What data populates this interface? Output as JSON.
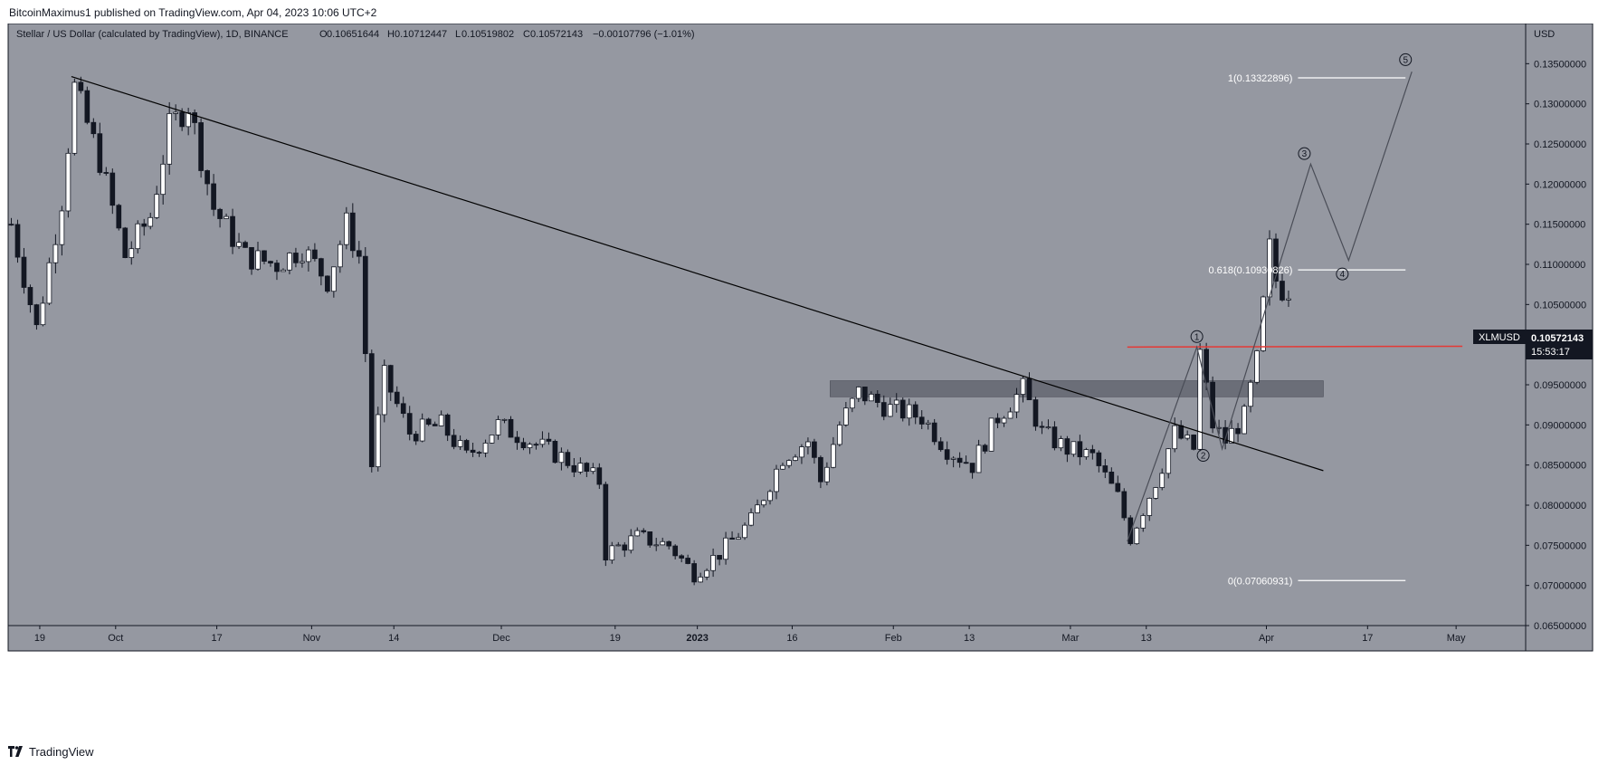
{
  "header": {
    "published_by": "BitcoinMaximus1 published on TradingView.com, Apr 04, 2023 10:06 UTC+2"
  },
  "legend": {
    "symbol": "Stellar / US Dollar (calculated by TradingView), 1D, BINANCE",
    "o_label": "O",
    "o_value": "0.10651644",
    "h_label": "H",
    "h_value": "0.10712447",
    "l_label": "L",
    "l_value": "0.10519802",
    "c_label": "C",
    "c_value": "0.10572143",
    "change": "−0.00107796 (−1.01%)"
  },
  "footer": {
    "brand": "TradingView"
  },
  "colors": {
    "plot_bg": "#9598a1",
    "bull": "#ffffff",
    "bear": "#131722",
    "resistance": "#e53935",
    "trend": "#000000",
    "zone": "#5d606b",
    "fib": "#ffffff",
    "wave": "#4a4d57"
  },
  "chart_data": {
    "type": "candlestick",
    "y_axis": {
      "unit": "USD",
      "ylim": [
        0.065,
        0.14
      ],
      "ticks": [
        "0.13500000",
        "0.13000000",
        "0.12500000",
        "0.12000000",
        "0.11500000",
        "0.11000000",
        "0.10500000",
        "0.10000000",
        "0.09500000",
        "0.09000000",
        "0.08500000",
        "0.08000000",
        "0.07500000",
        "0.07000000",
        "0.06500000"
      ]
    },
    "x_axis": {
      "ticks": [
        {
          "label": "19",
          "date": "2022-09-19"
        },
        {
          "label": "Oct",
          "date": "2022-10-01"
        },
        {
          "label": "17",
          "date": "2022-10-17"
        },
        {
          "label": "Nov",
          "date": "2022-11-01"
        },
        {
          "label": "14",
          "date": "2022-11-14"
        },
        {
          "label": "Dec",
          "date": "2022-12-01"
        },
        {
          "label": "19",
          "date": "2022-12-19"
        },
        {
          "label": "2023",
          "date": "2023-01-01"
        },
        {
          "label": "16",
          "date": "2023-01-16"
        },
        {
          "label": "Feb",
          "date": "2023-02-01"
        },
        {
          "label": "13",
          "date": "2023-02-13"
        },
        {
          "label": "Mar",
          "date": "2023-03-01"
        },
        {
          "label": "13",
          "date": "2023-03-13"
        },
        {
          "label": "Apr",
          "date": "2023-04-01"
        },
        {
          "label": "17",
          "date": "2023-04-17"
        },
        {
          "label": "May",
          "date": "2023-05-01"
        }
      ],
      "start": "2022-09-14",
      "end": "2023-05-12"
    },
    "price_points": [
      [
        "2022-09-14",
        0.115
      ],
      [
        "2022-09-18",
        0.102
      ],
      [
        "2022-09-22",
        0.118
      ],
      [
        "2022-09-24",
        0.132
      ],
      [
        "2022-09-28",
        0.123
      ],
      [
        "2022-10-02",
        0.111
      ],
      [
        "2022-10-06",
        0.116
      ],
      [
        "2022-10-09",
        0.127
      ],
      [
        "2022-10-12",
        0.13
      ],
      [
        "2022-10-16",
        0.117
      ],
      [
        "2022-10-21",
        0.111
      ],
      [
        "2022-10-26",
        0.11
      ],
      [
        "2022-10-30",
        0.112
      ],
      [
        "2022-11-03",
        0.108
      ],
      [
        "2022-11-06",
        0.115
      ],
      [
        "2022-11-08",
        0.111
      ],
      [
        "2022-11-09",
        0.099
      ],
      [
        "2022-11-10",
        0.085
      ],
      [
        "2022-11-12",
        0.096
      ],
      [
        "2022-11-16",
        0.089
      ],
      [
        "2022-11-21",
        0.09
      ],
      [
        "2022-11-25",
        0.086
      ],
      [
        "2022-11-30",
        0.09
      ],
      [
        "2022-12-05",
        0.088
      ],
      [
        "2022-12-10",
        0.086
      ],
      [
        "2022-12-16",
        0.083
      ],
      [
        "2022-12-17",
        0.074
      ],
      [
        "2022-12-22",
        0.076
      ],
      [
        "2022-12-27",
        0.075
      ],
      [
        "2022-12-31",
        0.0715
      ],
      [
        "2023-01-04",
        0.074
      ],
      [
        "2023-01-09",
        0.078
      ],
      [
        "2023-01-14",
        0.086
      ],
      [
        "2023-01-18",
        0.088
      ],
      [
        "2023-01-20",
        0.083
      ],
      [
        "2023-01-23",
        0.09
      ],
      [
        "2023-01-26",
        0.094
      ],
      [
        "2023-01-31",
        0.092
      ],
      [
        "2023-02-05",
        0.091
      ],
      [
        "2023-02-09",
        0.087
      ],
      [
        "2023-02-13",
        0.085
      ],
      [
        "2023-02-17",
        0.091
      ],
      [
        "2023-02-21",
        0.0945
      ],
      [
        "2023-02-24",
        0.089
      ],
      [
        "2023-02-28",
        0.087
      ],
      [
        "2023-03-04",
        0.086
      ],
      [
        "2023-03-08",
        0.081
      ],
      [
        "2023-03-10",
        0.076
      ],
      [
        "2023-03-14",
        0.083
      ],
      [
        "2023-03-17",
        0.089
      ],
      [
        "2023-03-20",
        0.087
      ],
      [
        "2023-03-21",
        0.099
      ],
      [
        "2023-03-23",
        0.09
      ],
      [
        "2023-03-25",
        0.088
      ],
      [
        "2023-03-28",
        0.091
      ],
      [
        "2023-03-30",
        0.098
      ],
      [
        "2023-03-31",
        0.105
      ],
      [
        "2023-04-01",
        0.112
      ],
      [
        "2023-04-02",
        0.108
      ],
      [
        "2023-04-04",
        0.1057
      ]
    ],
    "last_price": {
      "symbol": "XLMUSD",
      "value": "0.10572143",
      "countdown": "15:53:17"
    },
    "trendline": {
      "from": [
        "2022-09-24",
        0.1334
      ],
      "to": [
        "2023-04-10",
        0.0843
      ]
    },
    "resistance_line": {
      "from": [
        "2023-03-10",
        0.0997
      ],
      "to": [
        "2023-05-02",
        0.0998
      ]
    },
    "resistance_zone": {
      "from": "2023-01-22",
      "to": "2023-04-10",
      "low": 0.0935,
      "high": 0.0955
    },
    "fib_levels": [
      {
        "label": "1(0.13322896)",
        "value": 0.13322896
      },
      {
        "label": "0.618(0.10930826)",
        "value": 0.10930826
      },
      {
        "label": "0(0.07060931)",
        "value": 0.07060931
      }
    ],
    "fib_line_range": {
      "from": "2023-04-06",
      "to": "2023-04-23"
    },
    "wave_path": [
      [
        "2023-03-10",
        0.0755
      ],
      [
        "2023-03-21",
        0.0997
      ],
      [
        "2023-03-25",
        0.087
      ],
      [
        "2023-04-08",
        0.1225
      ],
      [
        "2023-04-14",
        0.1105
      ],
      [
        "2023-04-24",
        0.134
      ]
    ],
    "wave_labels": [
      {
        "label": "1",
        "date": "2023-03-21",
        "value": 0.101
      },
      {
        "label": "2",
        "date": "2023-03-22",
        "value": 0.0862
      },
      {
        "label": "3",
        "date": "2023-04-07",
        "value": 0.1238
      },
      {
        "label": "4",
        "date": "2023-04-13",
        "value": 0.1088
      },
      {
        "label": "5",
        "date": "2023-04-23",
        "value": 0.1355
      }
    ]
  }
}
